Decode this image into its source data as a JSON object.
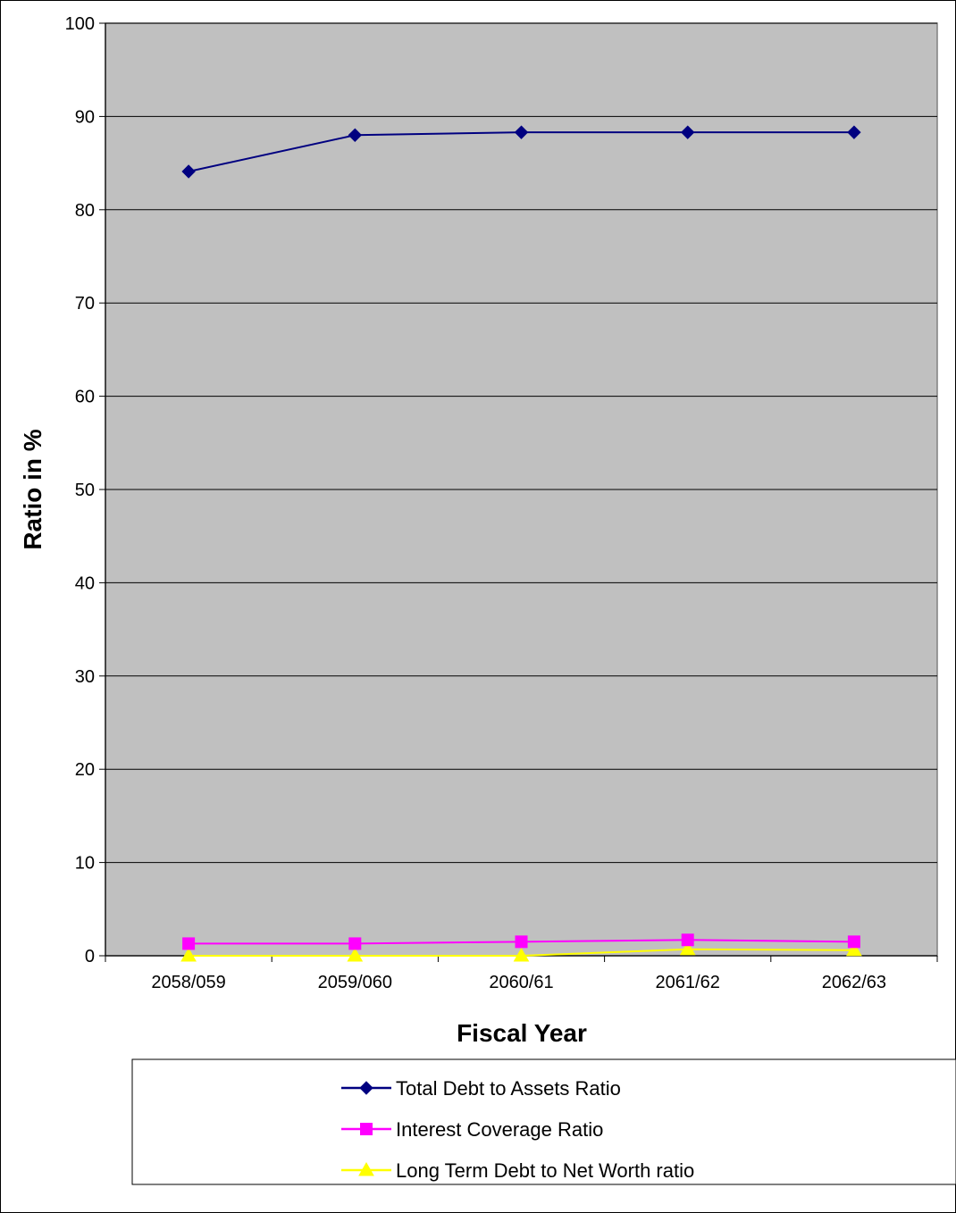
{
  "chart_data": {
    "type": "line",
    "title": "",
    "xlabel": "Fiscal Year",
    "ylabel": "Ratio in %",
    "categories": [
      "2058/059",
      "2059/060",
      "2060/61",
      "2061/62",
      "2062/63"
    ],
    "ylim": [
      0,
      100
    ],
    "yticks": [
      0,
      10,
      20,
      30,
      40,
      50,
      60,
      70,
      80,
      90,
      100
    ],
    "grid": true,
    "legend_position": "bottom",
    "plot_background": "#c0c0c0",
    "series": [
      {
        "name": "Total Debt to Assets Ratio",
        "values": [
          84.1,
          88.0,
          88.3,
          88.3,
          88.3
        ],
        "color": "#000080",
        "marker": "diamond"
      },
      {
        "name": "Interest Coverage Ratio",
        "values": [
          1.3,
          1.3,
          1.5,
          1.7,
          1.5
        ],
        "color": "#ff00ff",
        "marker": "square"
      },
      {
        "name": "Long Term Debt to Net Worth ratio",
        "values": [
          0.0,
          0.0,
          0.0,
          0.7,
          0.6
        ],
        "color": "#ffff00",
        "marker": "triangle"
      }
    ]
  }
}
